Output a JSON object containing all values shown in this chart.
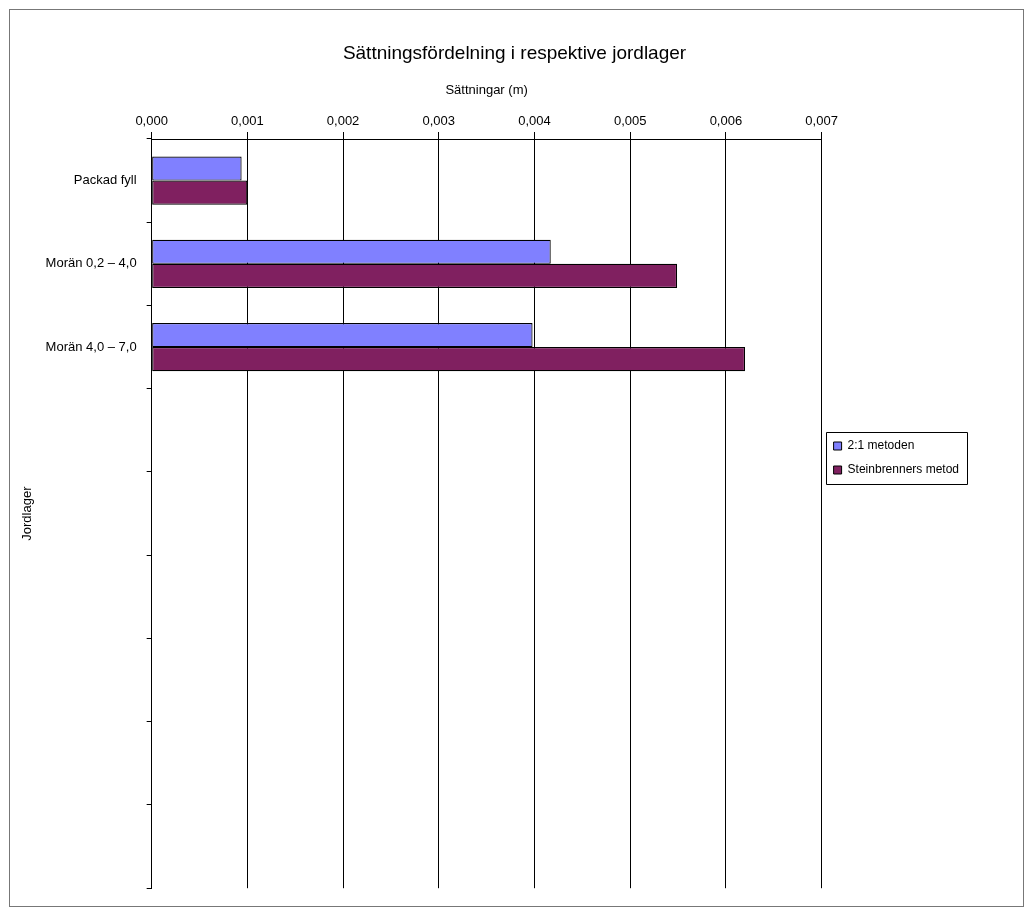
{
  "chart_data": {
    "type": "bar",
    "orientation": "horizontal",
    "title": "Sättningsfördelning i respektive jordlager",
    "xlabel": "Sättningar (m)",
    "ylabel": "Jordlager",
    "categories": [
      "Packad fyll",
      "Morän 0,2 – 4,0",
      "Morän 4,0 – 7,0",
      null,
      null,
      null,
      null,
      null,
      null
    ],
    "series": [
      {
        "name": "2:1 metoden",
        "color": "#8080ff",
        "values": [
          0.00094,
          0.00417,
          0.00398,
          null,
          null,
          null,
          null,
          null,
          null
        ]
      },
      {
        "name": "Steinbrenners metod",
        "color": "#802060",
        "values": [
          0.001,
          0.00549,
          0.0062,
          null,
          null,
          null,
          null,
          null,
          null
        ]
      }
    ],
    "xlim": [
      0,
      0.007
    ],
    "xticks": [
      {
        "value": 0,
        "label": "0,000"
      },
      {
        "value": 0.001,
        "label": "0,001"
      },
      {
        "value": 0.002,
        "label": "0,002"
      },
      {
        "value": 0.003,
        "label": "0,003"
      },
      {
        "value": 0.004,
        "label": "0,004"
      },
      {
        "value": 0.005,
        "label": "0,005"
      },
      {
        "value": 0.006,
        "label": "0,006"
      },
      {
        "value": 0.007,
        "label": "0,007"
      }
    ],
    "grid": "x",
    "legend": "right"
  }
}
